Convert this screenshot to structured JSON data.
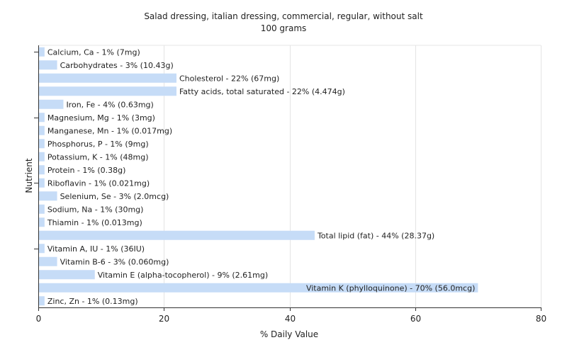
{
  "chart_data": {
    "type": "bar",
    "orientation": "horizontal",
    "title": "Salad dressing, italian dressing, commercial, regular, without salt",
    "subtitle": "100 grams",
    "xlabel": "% Daily Value",
    "ylabel": "Nutrient",
    "xlim": [
      0,
      80
    ],
    "xticks": [
      0,
      20,
      40,
      60,
      80
    ],
    "grid": true,
    "bar_color": "#c6dcf7",
    "categories": [
      "Calcium, Ca",
      "Carbohydrates",
      "Cholesterol",
      "Fatty acids, total saturated",
      "Iron, Fe",
      "Magnesium, Mg",
      "Manganese, Mn",
      "Phosphorus, P",
      "Potassium, K",
      "Protein",
      "Riboflavin",
      "Selenium, Se",
      "Sodium, Na",
      "Thiamin",
      "Total lipid (fat)",
      "Vitamin A, IU",
      "Vitamin B-6",
      "Vitamin E (alpha-tocopherol)",
      "Vitamin K (phylloquinone)",
      "Zinc, Zn"
    ],
    "values": [
      1,
      3,
      22,
      22,
      4,
      1,
      1,
      1,
      1,
      1,
      1,
      3,
      1,
      1,
      44,
      1,
      3,
      9,
      70,
      1
    ],
    "labels": [
      "Calcium, Ca - 1% (7mg)",
      "Carbohydrates - 3% (10.43g)",
      "Cholesterol - 22% (67mg)",
      "Fatty acids, total saturated - 22% (4.474g)",
      "Iron, Fe - 4% (0.63mg)",
      "Magnesium, Mg - 1% (3mg)",
      "Manganese, Mn - 1% (0.017mg)",
      "Phosphorus, P - 1% (9mg)",
      "Potassium, K - 1% (48mg)",
      "Protein - 1% (0.38g)",
      "Riboflavin - 1% (0.021mg)",
      "Selenium, Se - 3% (2.0mcg)",
      "Sodium, Na - 1% (30mg)",
      "Thiamin - 1% (0.013mg)",
      "Total lipid (fat) - 44% (28.37g)",
      "Vitamin A, IU - 1% (36IU)",
      "Vitamin B-6 - 3% (0.060mg)",
      "Vitamin E (alpha-tocopherol) - 9% (2.61mg)",
      "Vitamin K (phylloquinone) - 70% (56.0mcg)",
      "Zinc, Zn - 1% (0.13mg)"
    ],
    "label_inside_bar": [
      false,
      false,
      false,
      false,
      false,
      false,
      false,
      false,
      false,
      false,
      false,
      false,
      false,
      false,
      false,
      false,
      false,
      false,
      true,
      false
    ]
  }
}
